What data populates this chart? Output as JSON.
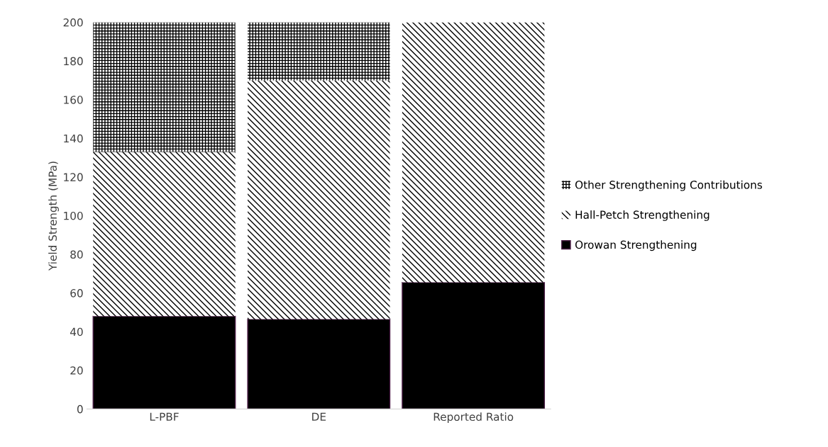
{
  "chart_data": {
    "type": "bar",
    "stacked": true,
    "ylabel": "Yield Strength (MPa)",
    "categories": [
      "L-PBF",
      "DE",
      "Reported Ratio"
    ],
    "series": [
      {
        "name": "Orowan Strengthening",
        "color": "#000000",
        "values": [
          48,
          46.5,
          65.5
        ]
      },
      {
        "name": "Hall-Petch Strengthening",
        "color": "#000000",
        "values": [
          85,
          123.5,
          134.5
        ]
      },
      {
        "name": "Other Strengthening Contributions",
        "color": "#000000",
        "values": [
          67,
          30,
          0
        ]
      }
    ],
    "ylim": [
      0,
      200
    ],
    "yticks": [
      0,
      20,
      40,
      60,
      80,
      100,
      120,
      140,
      160,
      180,
      200
    ],
    "grid": false,
    "legend": "right"
  }
}
